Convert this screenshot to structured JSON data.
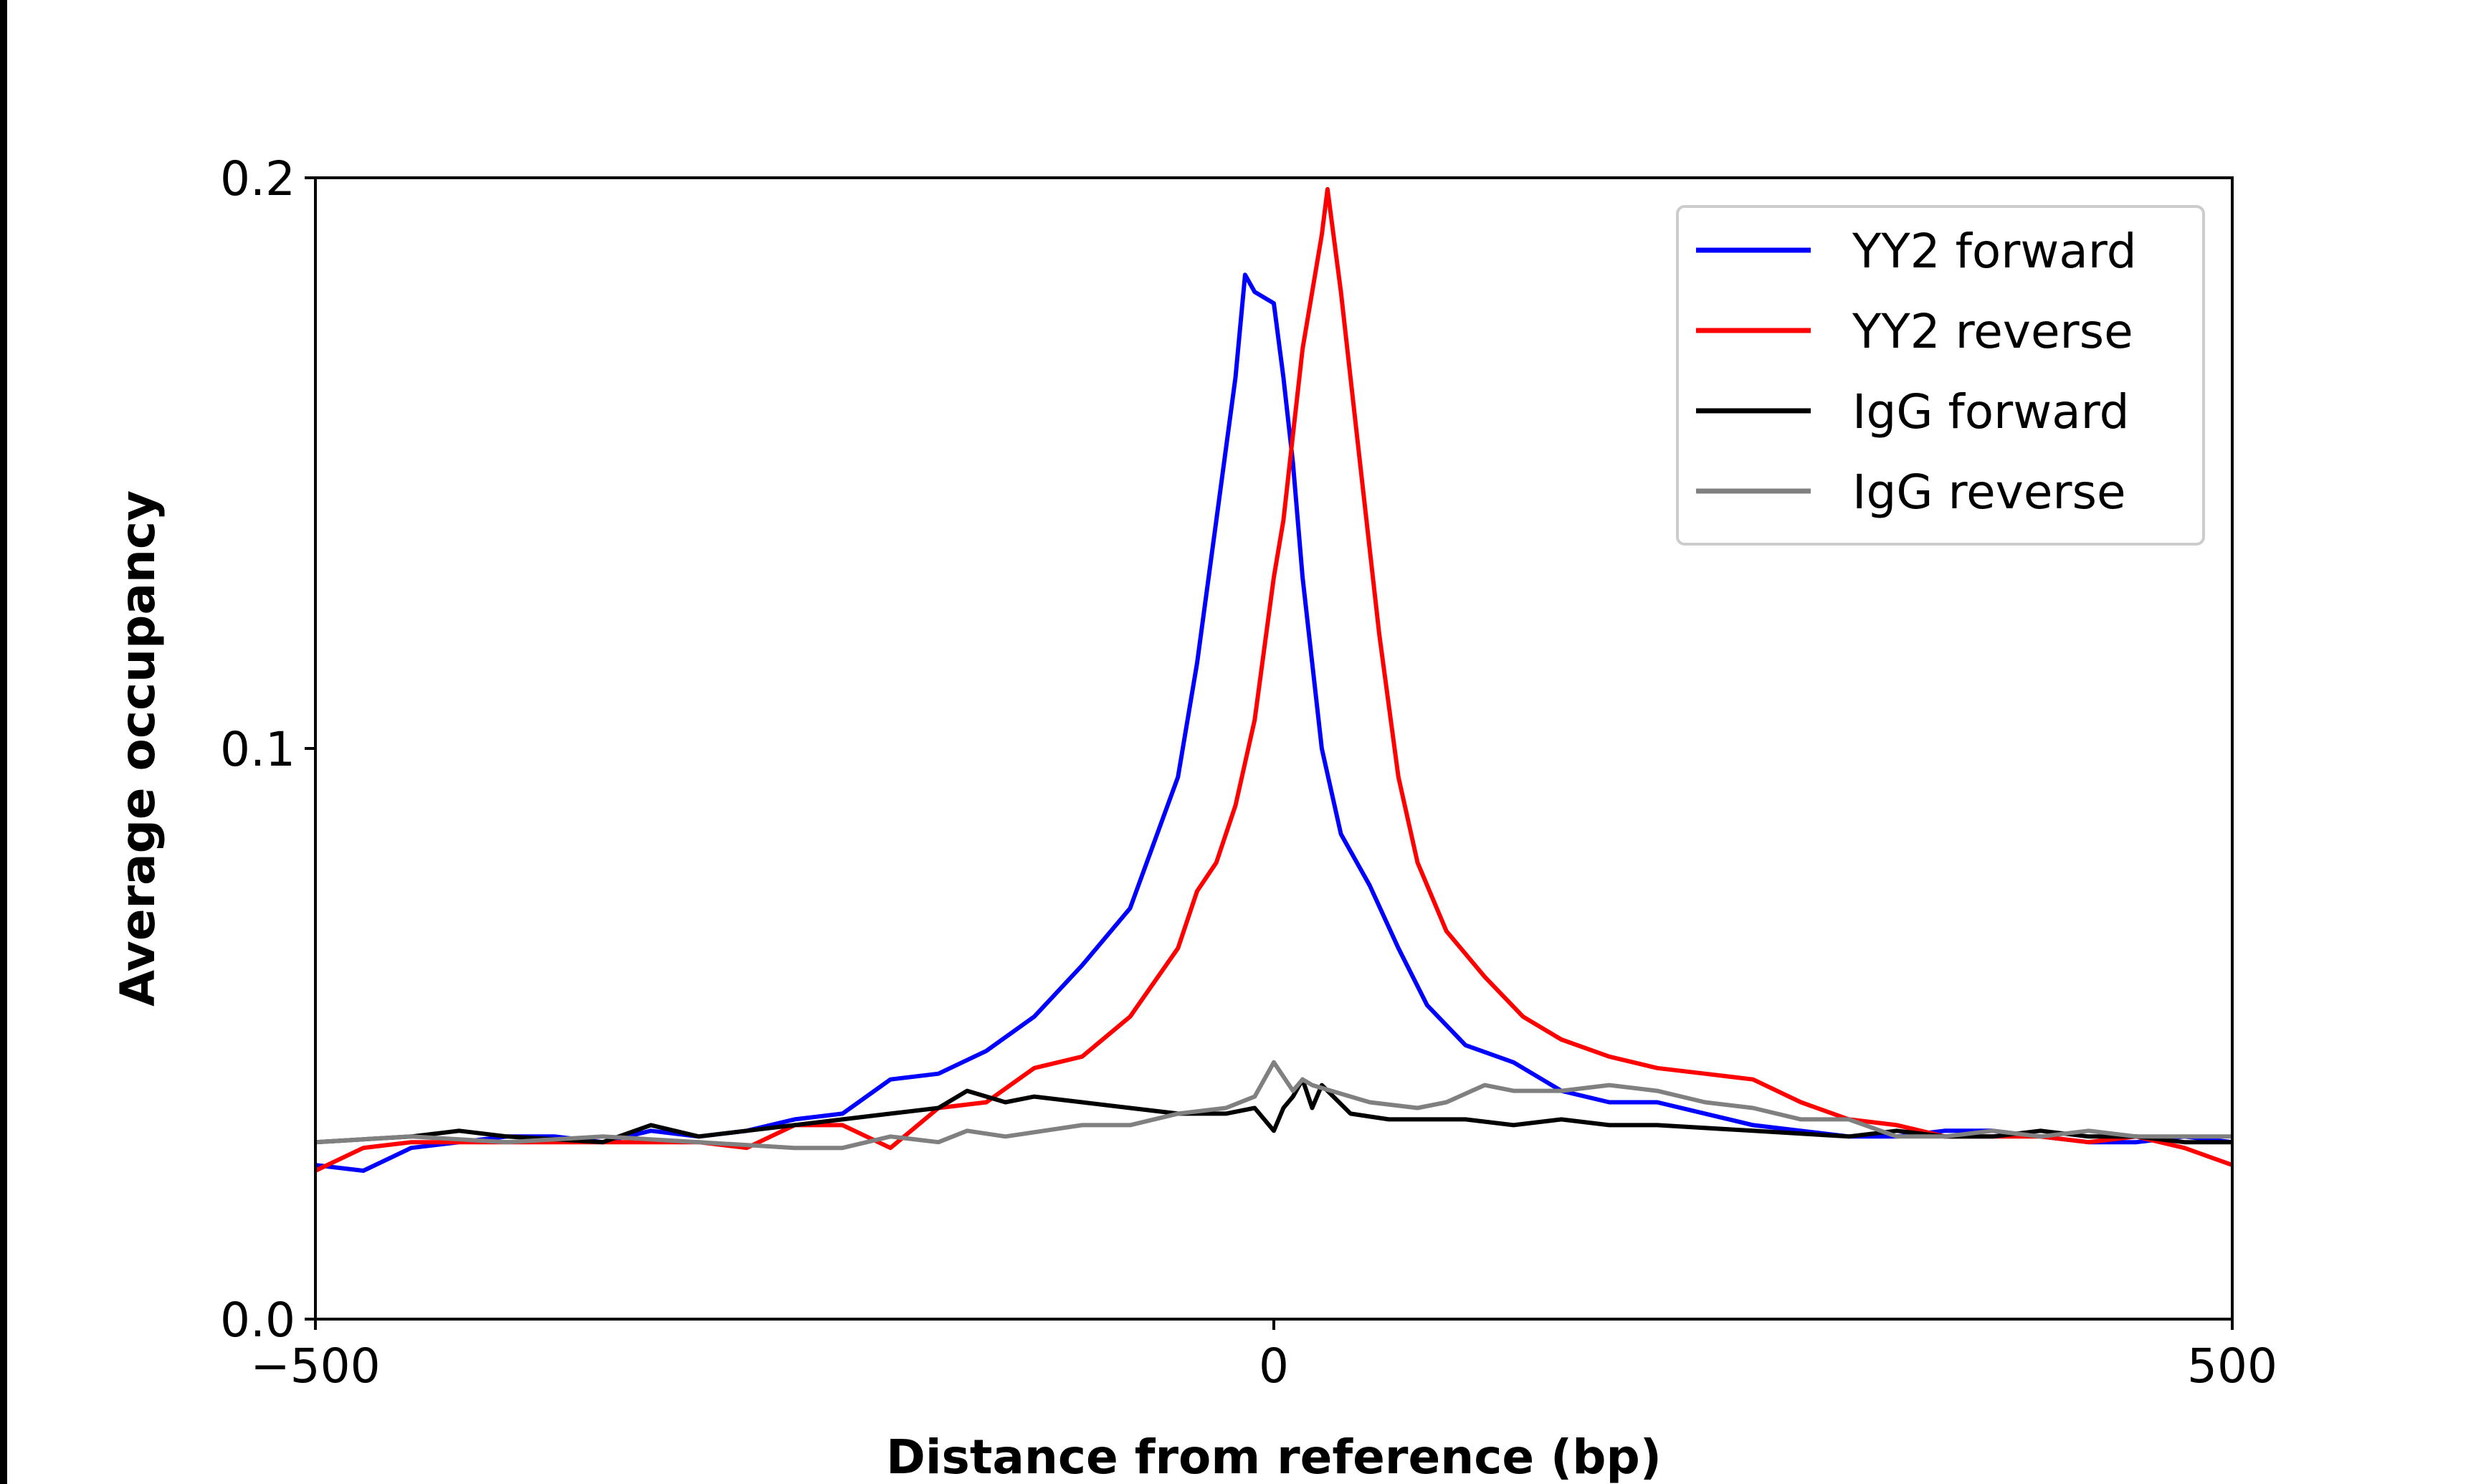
{
  "chart_data": {
    "type": "line",
    "title": "",
    "xlabel": "Distance from reference (bp)",
    "ylabel": "Average occupancy",
    "xlim": [
      -500,
      500
    ],
    "ylim": [
      0,
      0.2
    ],
    "xticks": [
      -500,
      0,
      500
    ],
    "xtick_labels": [
      "−500",
      "0",
      "500"
    ],
    "yticks": [
      0,
      0.1,
      0.2
    ],
    "ytick_labels": [
      "0.0",
      "0.1",
      "0.2"
    ],
    "grid": false,
    "legend_position": "top-right",
    "series": [
      {
        "name": "YY2 forward",
        "color": "#0000ff",
        "x": [
          -500,
          -475,
          -450,
          -425,
          -400,
          -375,
          -350,
          -325,
          -300,
          -275,
          -250,
          -225,
          -200,
          -175,
          -150,
          -125,
          -100,
          -75,
          -50,
          -40,
          -30,
          -20,
          -15,
          -10,
          0,
          5,
          10,
          15,
          20,
          25,
          35,
          50,
          65,
          80,
          100,
          125,
          150,
          175,
          200,
          225,
          250,
          275,
          300,
          325,
          350,
          375,
          400,
          425,
          450,
          475,
          500
        ],
        "y": [
          0.027,
          0.026,
          0.03,
          0.031,
          0.032,
          0.032,
          0.031,
          0.033,
          0.032,
          0.033,
          0.035,
          0.036,
          0.042,
          0.043,
          0.047,
          0.053,
          0.062,
          0.072,
          0.095,
          0.115,
          0.14,
          0.165,
          0.183,
          0.18,
          0.178,
          0.165,
          0.15,
          0.13,
          0.115,
          0.1,
          0.085,
          0.076,
          0.065,
          0.055,
          0.048,
          0.045,
          0.04,
          0.038,
          0.038,
          0.036,
          0.034,
          0.033,
          0.032,
          0.032,
          0.033,
          0.033,
          0.032,
          0.031,
          0.031,
          0.032,
          0.031
        ]
      },
      {
        "name": "YY2 reverse",
        "color": "#ff0000",
        "x": [
          -500,
          -475,
          -450,
          -400,
          -350,
          -300,
          -275,
          -250,
          -225,
          -200,
          -175,
          -150,
          -125,
          -100,
          -75,
          -50,
          -40,
          -30,
          -20,
          -10,
          0,
          5,
          10,
          15,
          20,
          25,
          28,
          35,
          45,
          55,
          65,
          75,
          90,
          110,
          130,
          150,
          175,
          200,
          225,
          250,
          275,
          300,
          325,
          350,
          375,
          400,
          425,
          450,
          475,
          500
        ],
        "y": [
          0.026,
          0.03,
          0.031,
          0.031,
          0.031,
          0.031,
          0.03,
          0.034,
          0.034,
          0.03,
          0.037,
          0.038,
          0.044,
          0.046,
          0.053,
          0.065,
          0.075,
          0.08,
          0.09,
          0.105,
          0.13,
          0.14,
          0.155,
          0.17,
          0.18,
          0.19,
          0.198,
          0.18,
          0.15,
          0.12,
          0.095,
          0.08,
          0.068,
          0.06,
          0.053,
          0.049,
          0.046,
          0.044,
          0.043,
          0.042,
          0.038,
          0.035,
          0.034,
          0.032,
          0.032,
          0.032,
          0.031,
          0.032,
          0.03,
          0.027
        ]
      },
      {
        "name": "IgG forward",
        "color": "#000000",
        "x": [
          -500,
          -450,
          -425,
          -400,
          -350,
          -325,
          -300,
          -275,
          -250,
          -225,
          -200,
          -175,
          -160,
          -140,
          -125,
          -100,
          -75,
          -50,
          -25,
          -10,
          0,
          5,
          10,
          15,
          20,
          25,
          40,
          60,
          100,
          125,
          150,
          175,
          200,
          250,
          300,
          325,
          350,
          375,
          400,
          425,
          450,
          475,
          500
        ],
        "y": [
          0.031,
          0.032,
          0.033,
          0.032,
          0.031,
          0.034,
          0.032,
          0.033,
          0.034,
          0.035,
          0.036,
          0.037,
          0.04,
          0.038,
          0.039,
          0.038,
          0.037,
          0.036,
          0.036,
          0.037,
          0.033,
          0.037,
          0.039,
          0.042,
          0.037,
          0.041,
          0.036,
          0.035,
          0.035,
          0.034,
          0.035,
          0.034,
          0.034,
          0.033,
          0.032,
          0.033,
          0.032,
          0.032,
          0.033,
          0.032,
          0.032,
          0.031,
          0.031
        ]
      },
      {
        "name": "IgG reverse",
        "color": "#808080",
        "x": [
          -500,
          -450,
          -400,
          -350,
          -300,
          -250,
          -225,
          -200,
          -175,
          -160,
          -140,
          -100,
          -75,
          -50,
          -25,
          -10,
          0,
          10,
          15,
          20,
          30,
          50,
          75,
          90,
          110,
          125,
          150,
          175,
          200,
          225,
          250,
          275,
          300,
          325,
          350,
          375,
          400,
          425,
          450,
          475,
          500
        ],
        "y": [
          0.031,
          0.032,
          0.031,
          0.032,
          0.031,
          0.03,
          0.03,
          0.032,
          0.031,
          0.033,
          0.032,
          0.034,
          0.034,
          0.036,
          0.037,
          0.039,
          0.045,
          0.04,
          0.042,
          0.041,
          0.04,
          0.038,
          0.037,
          0.038,
          0.041,
          0.04,
          0.04,
          0.041,
          0.04,
          0.038,
          0.037,
          0.035,
          0.035,
          0.032,
          0.032,
          0.033,
          0.032,
          0.033,
          0.032,
          0.032,
          0.032
        ]
      }
    ]
  }
}
